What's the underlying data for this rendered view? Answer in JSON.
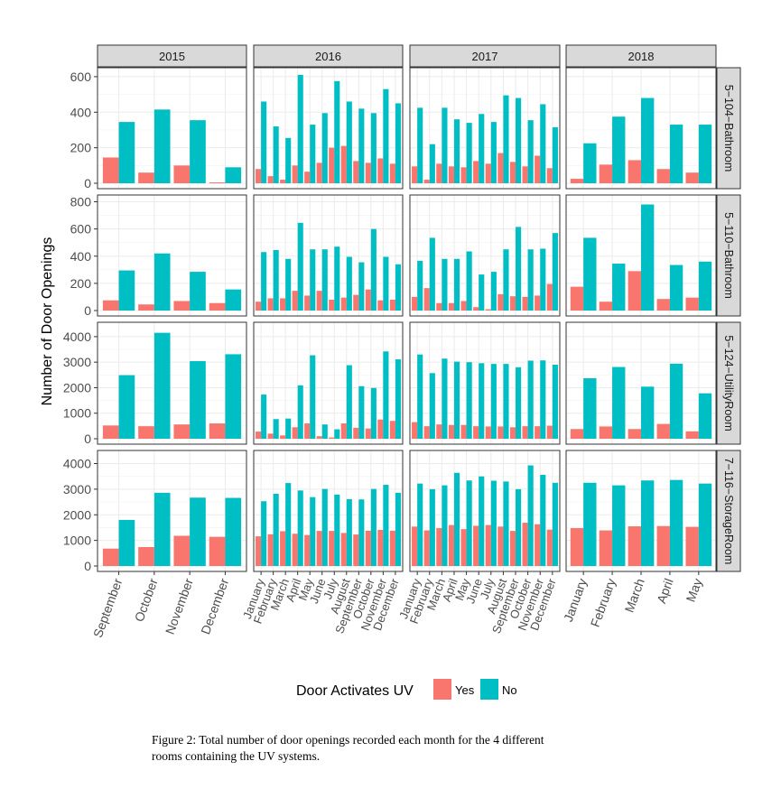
{
  "chart_data": {
    "type": "bar",
    "ylabel": "Number of Door Openings",
    "legend": {
      "title": "Door Activates UV",
      "entries": [
        {
          "name": "Yes",
          "color": "#F8766D"
        },
        {
          "name": "No",
          "color": "#00BFC4"
        }
      ],
      "placement": "bottom"
    },
    "facet_columns": [
      {
        "year": "2015",
        "months": [
          "September",
          "October",
          "November",
          "December"
        ]
      },
      {
        "year": "2016",
        "months": [
          "January",
          "February",
          "March",
          "April",
          "May",
          "June",
          "July",
          "August",
          "September",
          "October",
          "November",
          "December"
        ]
      },
      {
        "year": "2017",
        "months": [
          "January",
          "February",
          "March",
          "April",
          "May",
          "June",
          "July",
          "August",
          "September",
          "October",
          "November",
          "December"
        ]
      },
      {
        "year": "2018",
        "months": [
          "January",
          "February",
          "March",
          "April",
          "May"
        ]
      }
    ],
    "facet_rows": [
      {
        "room": "5−104−Bathroom",
        "ylim": [
          0,
          620
        ],
        "ticks": [
          0,
          200,
          400,
          600
        ],
        "tick_labels": [
          "0",
          "200",
          "400",
          "600"
        ],
        "yes": [
          [
            145,
            60,
            100,
            5
          ],
          [
            80,
            40,
            20,
            100,
            65,
            115,
            200,
            210,
            125,
            115,
            140,
            110
          ],
          [
            95,
            20,
            110,
            95,
            90,
            125,
            110,
            170,
            120,
            95,
            155,
            85
          ],
          [
            25,
            105,
            130,
            80,
            60
          ]
        ],
        "no": [
          [
            345,
            415,
            355,
            90
          ],
          [
            460,
            320,
            255,
            610,
            330,
            395,
            575,
            460,
            420,
            395,
            530,
            450
          ],
          [
            425,
            220,
            425,
            360,
            340,
            390,
            345,
            495,
            480,
            355,
            445,
            315
          ],
          [
            225,
            375,
            480,
            330,
            330
          ]
        ]
      },
      {
        "room": "5−110−Bathroom",
        "ylim": [
          0,
          810
        ],
        "ticks": [
          0,
          200,
          400,
          600,
          800
        ],
        "tick_labels": [
          "0",
          "200",
          "400",
          "600",
          "800"
        ],
        "yes": [
          [
            75,
            45,
            70,
            55
          ],
          [
            65,
            90,
            90,
            145,
            110,
            145,
            80,
            95,
            115,
            155,
            75,
            80
          ],
          [
            100,
            165,
            55,
            55,
            70,
            25,
            10,
            120,
            105,
            100,
            110,
            195
          ],
          [
            175,
            65,
            290,
            85,
            95
          ]
        ],
        "no": [
          [
            295,
            420,
            285,
            155
          ],
          [
            430,
            445,
            380,
            645,
            450,
            450,
            470,
            395,
            355,
            600,
            395,
            340
          ],
          [
            365,
            535,
            380,
            380,
            435,
            265,
            285,
            450,
            615,
            450,
            455,
            570
          ],
          [
            535,
            345,
            780,
            335,
            360
          ]
        ]
      },
      {
        "room": "5−124−UtilityRoom",
        "ylim": [
          0,
          4350
        ],
        "ticks": [
          0,
          1000,
          2000,
          3000,
          4000
        ],
        "tick_labels": [
          "0",
          "1000",
          "2000",
          "3000",
          "4000"
        ],
        "yes": [
          [
            520,
            490,
            560,
            600
          ],
          [
            280,
            200,
            130,
            450,
            600,
            100,
            50,
            600,
            430,
            400,
            750,
            700
          ],
          [
            650,
            490,
            560,
            540,
            540,
            490,
            480,
            480,
            450,
            490,
            490,
            510
          ],
          [
            380,
            480,
            380,
            580,
            290
          ]
        ],
        "no": [
          [
            2490,
            4150,
            3040,
            3310
          ],
          [
            1730,
            770,
            790,
            2090,
            3270,
            560,
            370,
            2880,
            2060,
            1990,
            3420,
            3110
          ],
          [
            3300,
            2570,
            3140,
            3020,
            3000,
            2960,
            2930,
            2930,
            2800,
            3060,
            3070,
            2900
          ],
          [
            2370,
            2810,
            2040,
            2940,
            1780
          ]
        ]
      },
      {
        "room": "7−116−StorageRoom",
        "ylim": [
          0,
          4300
        ],
        "ticks": [
          0,
          1000,
          2000,
          3000,
          4000
        ],
        "tick_labels": [
          "0",
          "1000",
          "2000",
          "3000",
          "4000"
        ],
        "yes": [
          [
            680,
            740,
            1180,
            1140
          ],
          [
            1160,
            1240,
            1360,
            1260,
            1210,
            1370,
            1370,
            1290,
            1230,
            1380,
            1410,
            1380
          ],
          [
            1540,
            1390,
            1480,
            1600,
            1440,
            1570,
            1600,
            1540,
            1370,
            1690,
            1630,
            1420
          ],
          [
            1480,
            1390,
            1550,
            1560,
            1530
          ]
        ],
        "no": [
          [
            1800,
            2860,
            2670,
            2660
          ],
          [
            2530,
            2820,
            3240,
            2950,
            2690,
            3010,
            2790,
            2610,
            2600,
            3010,
            3170,
            2860
          ],
          [
            3220,
            3000,
            3150,
            3640,
            3340,
            3500,
            3330,
            3300,
            3000,
            3930,
            3560,
            3250
          ],
          [
            3250,
            3150,
            3340,
            3360,
            3220
          ]
        ]
      }
    ]
  },
  "caption": {
    "line1": "Figure 2:  Total number of door openings recorded each month for the 4 different",
    "line2": "rooms containing the UV systems."
  }
}
